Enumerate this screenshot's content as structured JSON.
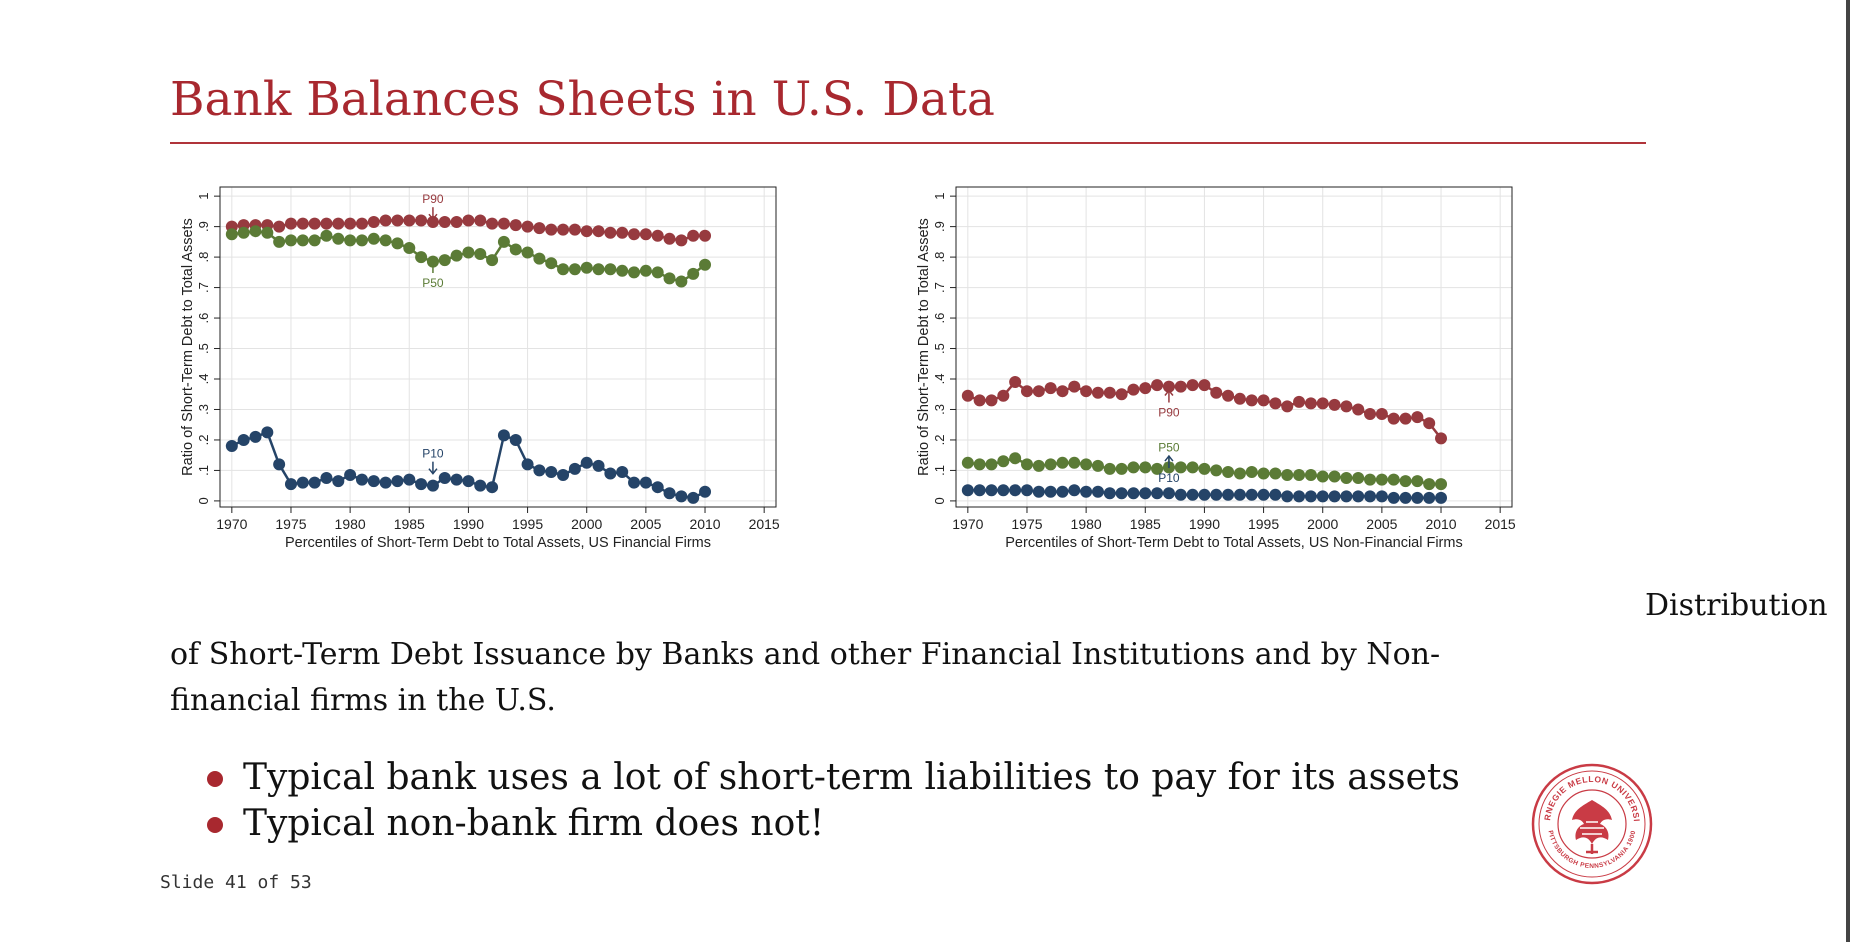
{
  "slide": {
    "title": "Bank Balances Sheets in U.S. Data",
    "caption_tail": "Distribution",
    "caption_body": "of Short-Term Debt Issuance by Banks and other Financial Institutions and by Non-financial firms in the U.S.",
    "bullets": [
      "Typical bank uses a lot of short-term liabilities to pay for its assets",
      "Typical non-bank firm does not!"
    ],
    "counter": "Slide 41 of 53",
    "logo": {
      "icon": "carnegie-mellon-seal",
      "text_top": "CARNEGIE MELLON UNIVERSITY",
      "text_bottom": "PITTSBURGH PENNSYLVANIA 1900"
    },
    "accent_color": "#a8282f"
  },
  "chart_data": [
    {
      "type": "line",
      "title": "",
      "xlabel": "Percentiles of Short-Term Debt to Total Assets, US Financial Firms",
      "ylabel": "Ratio of Short-Term Debt to Total Assets",
      "xlim": [
        1969,
        2016
      ],
      "ylim": [
        -0.02,
        1.03
      ],
      "xticks": [
        1970,
        1975,
        1980,
        1985,
        1990,
        1995,
        2000,
        2005,
        2010,
        2015
      ],
      "xtick_labels": [
        "1970",
        "1975",
        "1980",
        "1985",
        "1990",
        "1995",
        "2000",
        "2005",
        "2010",
        "2015"
      ],
      "yticks": [
        0,
        0.1,
        0.2,
        0.3,
        0.4,
        0.5,
        0.6,
        0.7,
        0.8,
        0.9,
        1
      ],
      "ytick_labels": [
        "0",
        ".1",
        ".2",
        ".3",
        ".4",
        ".5",
        ".6",
        ".7",
        ".8",
        ".9",
        "1"
      ],
      "grid": true,
      "x": [
        1970,
        1971,
        1972,
        1973,
        1974,
        1975,
        1976,
        1977,
        1978,
        1979,
        1980,
        1981,
        1982,
        1983,
        1984,
        1985,
        1986,
        1987,
        1988,
        1989,
        1990,
        1991,
        1992,
        1993,
        1994,
        1995,
        1996,
        1997,
        1998,
        1999,
        2000,
        2001,
        2002,
        2003,
        2004,
        2005,
        2006,
        2007,
        2008,
        2009,
        2010
      ],
      "series": [
        {
          "name": "P90",
          "color": "#973a3f",
          "label_x": 1987,
          "label_y": 0.99,
          "arrow": "down",
          "values": [
            0.9,
            0.905,
            0.905,
            0.905,
            0.9,
            0.91,
            0.91,
            0.91,
            0.91,
            0.91,
            0.91,
            0.91,
            0.915,
            0.92,
            0.92,
            0.92,
            0.92,
            0.915,
            0.915,
            0.915,
            0.92,
            0.92,
            0.91,
            0.91,
            0.905,
            0.9,
            0.895,
            0.89,
            0.89,
            0.89,
            0.885,
            0.885,
            0.88,
            0.88,
            0.875,
            0.875,
            0.87,
            0.86,
            0.855,
            0.87,
            0.87
          ]
        },
        {
          "name": "P50",
          "color": "#5b7b36",
          "label_x": 1987,
          "label_y": 0.715,
          "arrow": "up",
          "values": [
            0.875,
            0.88,
            0.885,
            0.88,
            0.85,
            0.855,
            0.855,
            0.855,
            0.87,
            0.86,
            0.855,
            0.855,
            0.86,
            0.855,
            0.845,
            0.83,
            0.8,
            0.785,
            0.79,
            0.805,
            0.815,
            0.81,
            0.79,
            0.85,
            0.825,
            0.815,
            0.795,
            0.78,
            0.76,
            0.76,
            0.765,
            0.76,
            0.76,
            0.755,
            0.75,
            0.755,
            0.75,
            0.73,
            0.72,
            0.745,
            0.775
          ]
        },
        {
          "name": "P10",
          "color": "#254468",
          "label_x": 1987,
          "label_y": 0.155,
          "arrow": "down",
          "values": [
            0.18,
            0.2,
            0.21,
            0.225,
            0.12,
            0.055,
            0.06,
            0.06,
            0.075,
            0.065,
            0.085,
            0.07,
            0.065,
            0.06,
            0.065,
            0.07,
            0.055,
            0.05,
            0.075,
            0.07,
            0.065,
            0.05,
            0.045,
            0.215,
            0.2,
            0.12,
            0.1,
            0.095,
            0.085,
            0.105,
            0.125,
            0.115,
            0.09,
            0.095,
            0.06,
            0.06,
            0.045,
            0.025,
            0.015,
            0.01,
            0.03
          ]
        }
      ]
    },
    {
      "type": "line",
      "title": "",
      "xlabel": "Percentiles of Short-Term Debt to Total Assets, US Non-Financial Firms",
      "ylabel": "Ratio of Short-Term Debt to Total Assets",
      "xlim": [
        1969,
        2016
      ],
      "ylim": [
        -0.02,
        1.03
      ],
      "xticks": [
        1970,
        1975,
        1980,
        1985,
        1990,
        1995,
        2000,
        2005,
        2010,
        2015
      ],
      "xtick_labels": [
        "1970",
        "1975",
        "1980",
        "1985",
        "1990",
        "1995",
        "2000",
        "2005",
        "2010",
        "2015"
      ],
      "yticks": [
        0,
        0.1,
        0.2,
        0.3,
        0.4,
        0.5,
        0.6,
        0.7,
        0.8,
        0.9,
        1
      ],
      "ytick_labels": [
        "0",
        ".1",
        ".2",
        ".3",
        ".4",
        ".5",
        ".6",
        ".7",
        ".8",
        ".9",
        "1"
      ],
      "grid": true,
      "x": [
        1970,
        1971,
        1972,
        1973,
        1974,
        1975,
        1976,
        1977,
        1978,
        1979,
        1980,
        1981,
        1982,
        1983,
        1984,
        1985,
        1986,
        1987,
        1988,
        1989,
        1990,
        1991,
        1992,
        1993,
        1994,
        1995,
        1996,
        1997,
        1998,
        1999,
        2000,
        2001,
        2002,
        2003,
        2004,
        2005,
        2006,
        2007,
        2008,
        2009,
        2010
      ],
      "series": [
        {
          "name": "P90",
          "color": "#973a3f",
          "label_x": 1987,
          "label_y": 0.29,
          "arrow": "up",
          "values": [
            0.345,
            0.33,
            0.33,
            0.345,
            0.39,
            0.36,
            0.36,
            0.37,
            0.36,
            0.375,
            0.36,
            0.355,
            0.355,
            0.35,
            0.365,
            0.37,
            0.38,
            0.375,
            0.375,
            0.38,
            0.38,
            0.355,
            0.345,
            0.335,
            0.33,
            0.33,
            0.32,
            0.31,
            0.325,
            0.32,
            0.32,
            0.315,
            0.31,
            0.3,
            0.285,
            0.285,
            0.27,
            0.27,
            0.275,
            0.255,
            0.205
          ]
        },
        {
          "name": "P50",
          "color": "#5b7b36",
          "label_x": 1987,
          "label_y": 0.175,
          "arrow": "down",
          "values": [
            0.125,
            0.12,
            0.12,
            0.13,
            0.14,
            0.12,
            0.115,
            0.12,
            0.125,
            0.125,
            0.12,
            0.115,
            0.105,
            0.105,
            0.11,
            0.11,
            0.105,
            0.11,
            0.11,
            0.11,
            0.105,
            0.1,
            0.095,
            0.09,
            0.095,
            0.09,
            0.09,
            0.085,
            0.085,
            0.085,
            0.08,
            0.08,
            0.075,
            0.075,
            0.07,
            0.07,
            0.07,
            0.065,
            0.065,
            0.055,
            0.055
          ]
        },
        {
          "name": "P10",
          "color": "#254468",
          "label_x": 1987,
          "label_y": 0.075,
          "arrow": "up",
          "values": [
            0.035,
            0.035,
            0.035,
            0.035,
            0.035,
            0.035,
            0.03,
            0.03,
            0.03,
            0.035,
            0.03,
            0.03,
            0.025,
            0.025,
            0.025,
            0.025,
            0.025,
            0.025,
            0.02,
            0.02,
            0.02,
            0.02,
            0.02,
            0.02,
            0.02,
            0.02,
            0.02,
            0.015,
            0.015,
            0.015,
            0.015,
            0.015,
            0.015,
            0.015,
            0.015,
            0.015,
            0.01,
            0.01,
            0.01,
            0.01,
            0.01
          ]
        }
      ]
    }
  ]
}
